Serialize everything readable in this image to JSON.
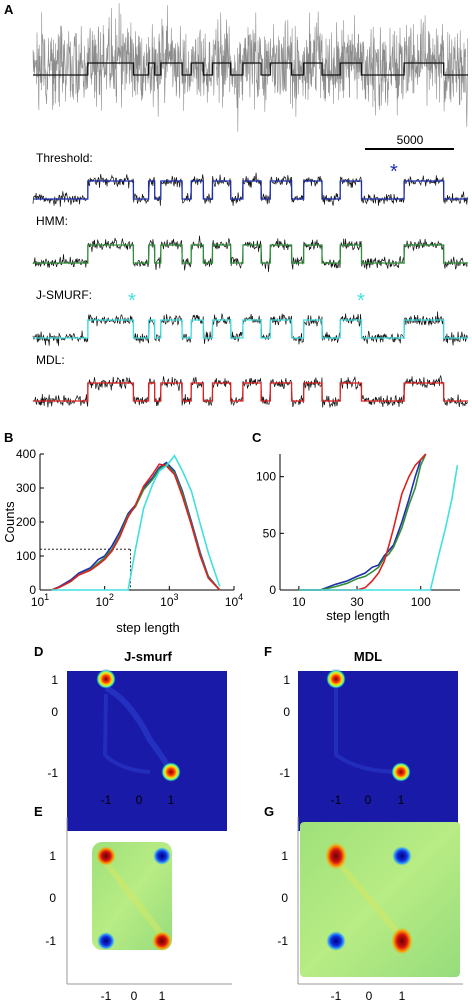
{
  "panel_letters": {
    "a": "A",
    "b": "B",
    "c": "C",
    "d": "D",
    "e": "E",
    "f": "F",
    "g": "G"
  },
  "colors": {
    "raw_trace": "#8c8c8c",
    "step_fit": "#111111",
    "threshold": "#1f2fb0",
    "hmm": "#2f8f3a",
    "jsmurf": "#3fe0e0",
    "mdl": "#e02020",
    "heatmap_bg_top": "#1a1aa8",
    "heatmap_bg_bottom": "#9ee08a"
  },
  "chart_data": [
    {
      "panel": "A",
      "type": "line",
      "scalebar_label": "5000",
      "traces": [
        {
          "label": "Threshold:",
          "marker": "*",
          "marker_color": "threshold"
        },
        {
          "label": "HMM:"
        },
        {
          "label": "J-SMURF:",
          "marker": "*",
          "marker_color": "jsmurf"
        },
        {
          "label": "MDL:"
        }
      ],
      "step_sequence": [
        0,
        0,
        0,
        0,
        0,
        0,
        0,
        0,
        0,
        0,
        0,
        0,
        0,
        0,
        0,
        0,
        0,
        0,
        1,
        1,
        1,
        1,
        1,
        1,
        1,
        1,
        1,
        1,
        1,
        1,
        1,
        1,
        1,
        0,
        0,
        0,
        0,
        0,
        1,
        1,
        0,
        0,
        1,
        1,
        1,
        1,
        1,
        1,
        1,
        0,
        0,
        0,
        1,
        1,
        1,
        1,
        0,
        0,
        0,
        1,
        1,
        1,
        1,
        1,
        1,
        0,
        0,
        0,
        0,
        1,
        1,
        1,
        1,
        1,
        1,
        0,
        0,
        0,
        1,
        1,
        1,
        1,
        1,
        1,
        1,
        0,
        0,
        0,
        0,
        1,
        1,
        1,
        1,
        1,
        1,
        0,
        0,
        0,
        0,
        0,
        0,
        1,
        1,
        1,
        1,
        1,
        1,
        1,
        0,
        0,
        0,
        0,
        0,
        0,
        0,
        0,
        0,
        0,
        0,
        0,
        0,
        0,
        1,
        1,
        1,
        1,
        1,
        1,
        1,
        1,
        1,
        1,
        1,
        1,
        1,
        0,
        0,
        0,
        0,
        0,
        0,
        0,
        0
      ]
    },
    {
      "panel": "B",
      "type": "line",
      "xlabel": "step length",
      "ylabel": "Counts",
      "xscale": "log",
      "xlim": [
        10,
        10000
      ],
      "ylim": [
        0,
        400
      ],
      "xticks": [
        {
          "value": 10,
          "label": "10",
          "exp": "1"
        },
        {
          "value": 100,
          "label": "10",
          "exp": "2"
        },
        {
          "value": 1000,
          "label": "10",
          "exp": "3"
        },
        {
          "value": 10000,
          "label": "10",
          "exp": "4"
        }
      ],
      "yticks": [
        0,
        100,
        200,
        300,
        400
      ],
      "guide": {
        "x": 250,
        "y": 120
      },
      "x": [
        15,
        20,
        30,
        40,
        60,
        80,
        100,
        130,
        170,
        230,
        300,
        400,
        550,
        700,
        900,
        1200,
        1600,
        2200,
        3000,
        4000,
        6000
      ],
      "series": [
        {
          "color": "threshold",
          "values": [
            0,
            10,
            30,
            50,
            65,
            90,
            100,
            130,
            170,
            225,
            250,
            300,
            330,
            360,
            375,
            350,
            290,
            200,
            110,
            40,
            0
          ]
        },
        {
          "color": "hmm",
          "values": [
            0,
            8,
            25,
            45,
            60,
            80,
            95,
            120,
            160,
            220,
            245,
            295,
            325,
            355,
            370,
            345,
            285,
            195,
            105,
            38,
            0
          ]
        },
        {
          "color": "mdl",
          "values": [
            0,
            8,
            26,
            44,
            58,
            75,
            90,
            115,
            155,
            215,
            250,
            305,
            340,
            370,
            365,
            340,
            275,
            190,
            100,
            35,
            0
          ]
        },
        {
          "color": "jsmurf",
          "values": [
            0,
            0,
            0,
            0,
            0,
            0,
            0,
            0,
            0,
            0,
            120,
            240,
            310,
            350,
            365,
            395,
            350,
            290,
            195,
            110,
            10
          ]
        }
      ]
    },
    {
      "panel": "C",
      "type": "line",
      "xlabel": "step length",
      "xscale": "log",
      "xlim": [
        7,
        210
      ],
      "ylim": [
        0,
        120
      ],
      "xticks": [
        10,
        30,
        100
      ],
      "yticks": [
        0,
        50,
        100
      ],
      "x": [
        10,
        15,
        20,
        25,
        30,
        35,
        40,
        45,
        50,
        55,
        60,
        70,
        80,
        90,
        100,
        110,
        120,
        140,
        160,
        180,
        200
      ],
      "series": [
        {
          "color": "threshold",
          "values": [
            0,
            0,
            5,
            8,
            12,
            15,
            20,
            22,
            30,
            35,
            40,
            60,
            80,
            100,
            115,
            120,
            null,
            null,
            null,
            null,
            null
          ]
        },
        {
          "color": "hmm",
          "values": [
            0,
            0,
            3,
            6,
            10,
            12,
            16,
            20,
            28,
            32,
            38,
            55,
            75,
            90,
            110,
            120,
            null,
            null,
            null,
            null,
            null
          ]
        },
        {
          "color": "mdl",
          "values": [
            0,
            0,
            0,
            0,
            0,
            2,
            8,
            15,
            25,
            40,
            55,
            85,
            100,
            110,
            115,
            120,
            null,
            null,
            null,
            null,
            null
          ]
        },
        {
          "color": "jsmurf",
          "values": [
            0,
            0,
            0,
            0,
            0,
            0,
            0,
            0,
            0,
            0,
            0,
            0,
            0,
            0,
            0,
            0,
            0,
            30,
            55,
            80,
            110
          ]
        }
      ]
    },
    {
      "panel": "D",
      "type": "heatmap",
      "title": "J-smurf",
      "xticks": [
        "-1",
        "0",
        "1"
      ],
      "yticks": [
        "1",
        "0",
        "-1"
      ],
      "peaks": [
        {
          "x": -1,
          "y": 1
        },
        {
          "x": 1,
          "y": -1
        }
      ]
    },
    {
      "panel": "F",
      "type": "heatmap",
      "title": "MDL",
      "xticks": [
        "-1",
        "0",
        "1"
      ],
      "yticks": [
        "1",
        "0",
        "-1"
      ],
      "peaks": [
        {
          "x": -1,
          "y": 1
        },
        {
          "x": 1,
          "y": -1
        }
      ]
    },
    {
      "panel": "E",
      "type": "heatmap",
      "xticks": [
        "-1",
        "0",
        "1"
      ],
      "yticks": [
        "1",
        "0",
        "-1"
      ],
      "hot": [
        {
          "x": -1,
          "y": 1
        },
        {
          "x": 1,
          "y": -1
        }
      ],
      "cold": [
        {
          "x": 1,
          "y": 1
        },
        {
          "x": -1,
          "y": -1
        }
      ]
    },
    {
      "panel": "G",
      "type": "heatmap",
      "xticks": [
        "-1",
        "0",
        "1"
      ],
      "yticks": [
        "1",
        "0",
        "-1"
      ],
      "hot": [
        {
          "x": -1,
          "y": 1
        },
        {
          "x": 1,
          "y": -1
        }
      ],
      "cold": [
        {
          "x": 1,
          "y": 1
        },
        {
          "x": -1,
          "y": -1
        }
      ]
    }
  ]
}
